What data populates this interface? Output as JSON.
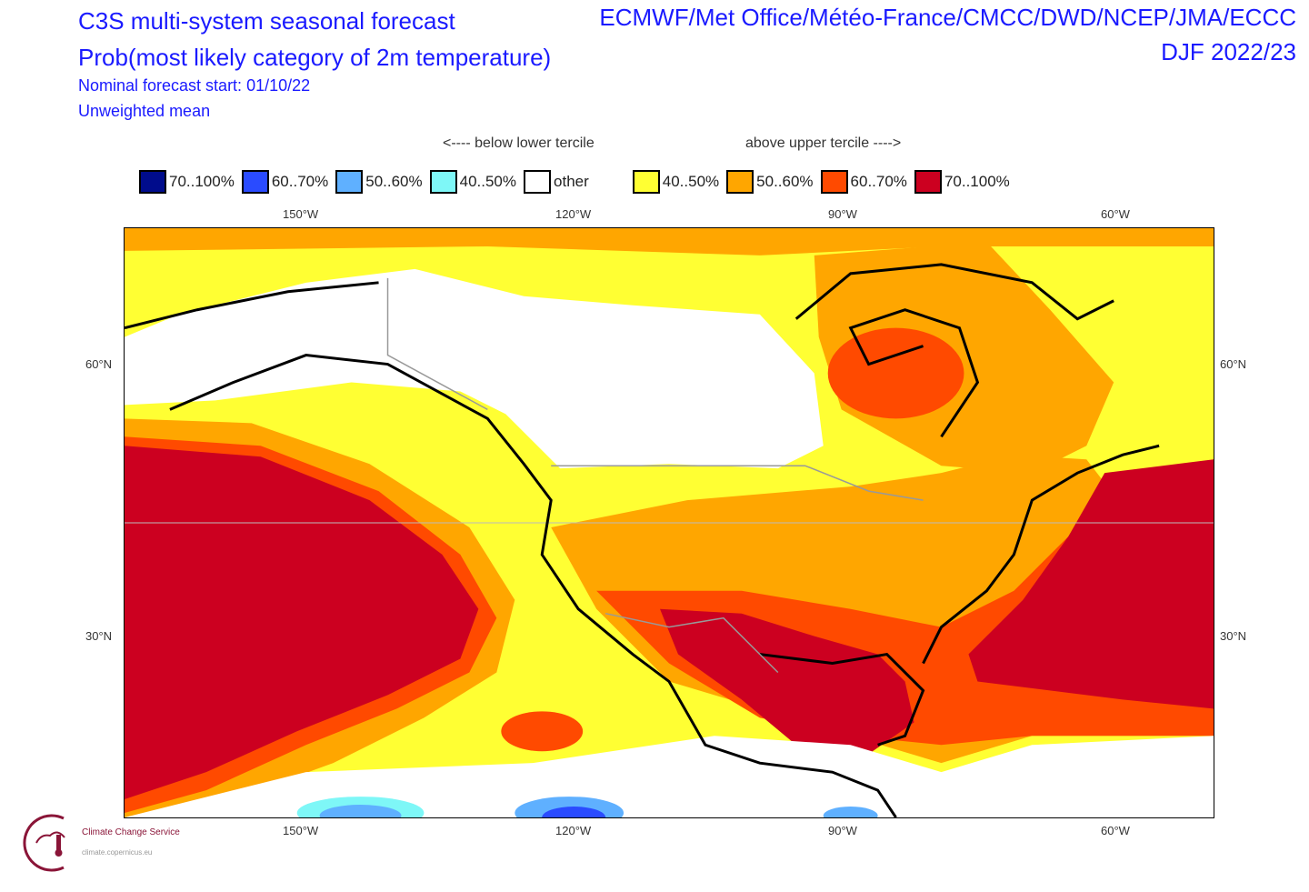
{
  "header": {
    "title1": "C3S multi-system seasonal forecast",
    "title2": "Prob(most likely category of 2m temperature)",
    "start": "Nominal forecast start: 01/10/22",
    "mean": "Unweighted mean",
    "centres": "ECMWF/Met Office/Météo-France/CMCC/DWD/NCEP/JMA/ECCC",
    "season": "DJF 2022/23"
  },
  "legend": {
    "below": "<---- below lower tercile",
    "above": "above upper tercile ---->",
    "items": [
      {
        "label": "70..100%",
        "color": "#000c8c"
      },
      {
        "label": "60..70%",
        "color": "#2a4bff"
      },
      {
        "label": "50..60%",
        "color": "#5fb0ff"
      },
      {
        "label": "40..50%",
        "color": "#7ef7f7"
      },
      {
        "label": "other",
        "color": "#ffffff"
      },
      {
        "label": "40..50%",
        "color": "#ffff33"
      },
      {
        "label": "50..60%",
        "color": "#ffa600"
      },
      {
        "label": "60..70%",
        "color": "#ff4a00"
      },
      {
        "label": "70..100%",
        "color": "#cc0020"
      }
    ]
  },
  "axes": {
    "lon": [
      "150°W",
      "120°W",
      "90°W",
      "60°W"
    ],
    "lat": [
      "60°N",
      "30°N"
    ]
  },
  "logo": {
    "name": "Climate Change Service",
    "url": "climate.copernicus.eu"
  }
}
